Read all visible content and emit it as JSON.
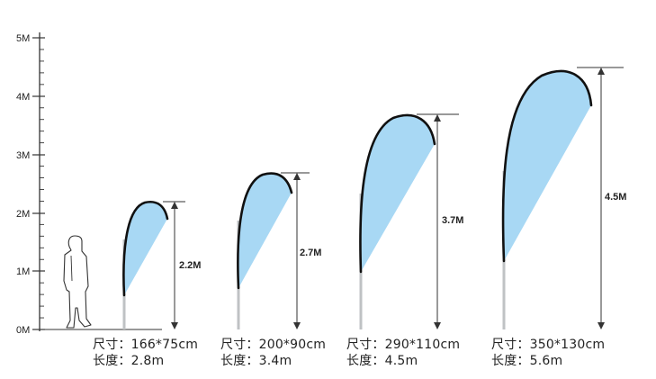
{
  "axis": {
    "ticks": [
      "0M",
      "1M",
      "2M",
      "3M",
      "4M",
      "5M"
    ]
  },
  "colors": {
    "flag_fill": "#a8d8f4",
    "flag_outline": "#111111",
    "pole": "#bfc2c4",
    "line": "#333333"
  },
  "flags": [
    {
      "height_label": "2.2M",
      "size_line": "尺寸：166*75cm",
      "length_line": "长度：2.8m"
    },
    {
      "height_label": "2.7M",
      "size_line": "尺寸：200*90cm",
      "length_line": "长度：3.4m"
    },
    {
      "height_label": "3.7M",
      "size_line": "尺寸：290*110cm",
      "length_line": "长度：4.5m"
    },
    {
      "height_label": "4.5M",
      "size_line": "尺寸：350*130cm",
      "length_line": "长度：5.6m"
    }
  ]
}
